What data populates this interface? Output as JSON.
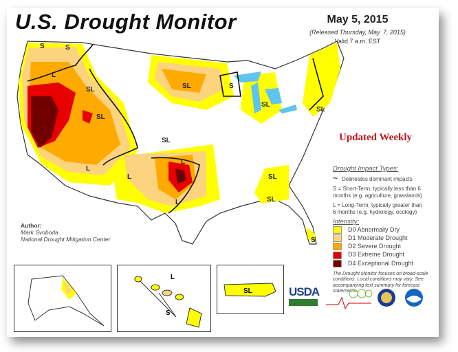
{
  "header": {
    "title": "U.S. Drought Monitor",
    "date": "May 5, 2015",
    "released": "(Released Thursday, May. 7, 2015)",
    "valid": "Valid 7 a.m. EST"
  },
  "banner": "Updated Weekly",
  "legend": {
    "impact_heading": "Drought Impact Types:",
    "delineates": "Delineates dominant impacts",
    "s_def": "S = Short-Term, typically less than 6 months (e.g. agriculture, grasslands)",
    "l_def": "L = Long-Term, typically greater than 6 months (e.g. hydrology, ecology)",
    "intensity_heading": "Intensity:",
    "categories": [
      {
        "label": "D0 Abnormally Dry",
        "color": "#ffff00"
      },
      {
        "label": "D1 Moderate Drought",
        "color": "#fcd37f"
      },
      {
        "label": "D2 Severe Drought",
        "color": "#ffaa00"
      },
      {
        "label": "D3 Extreme Drought",
        "color": "#e60000"
      },
      {
        "label": "D4 Exceptional Drought",
        "color": "#730000"
      }
    ],
    "note": "The Drought Monitor focuses on broad-scale conditions. Local conditions may vary. See accompanying text summary for forecast statements."
  },
  "author": {
    "heading": "Author:",
    "name": "Mark Svoboda",
    "org": "National Drought Mitigation Center"
  },
  "map_labels": [
    "S",
    "L",
    "SL",
    "S",
    "L",
    "SL",
    "SL",
    "S",
    "SL",
    "SL",
    "L",
    "L",
    "SL",
    "L",
    "S",
    "L",
    "SL",
    "SL",
    "S"
  ],
  "insets": {
    "hawaii_labels": [
      "L",
      "S"
    ],
    "puerto_rico_label": "SL"
  },
  "logos": {
    "usda": "USDA"
  }
}
